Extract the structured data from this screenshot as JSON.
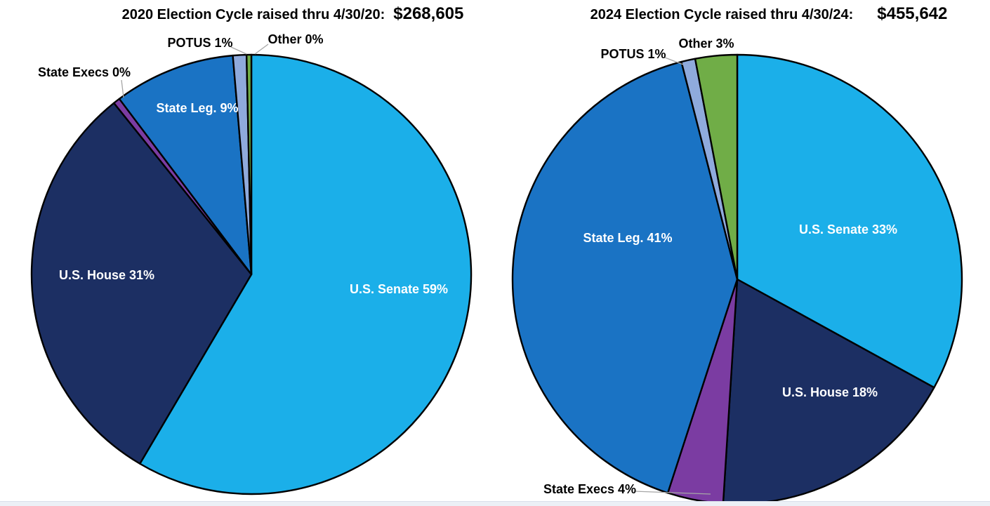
{
  "styles": {
    "background": "#ffffff",
    "slice_outline": "#000000",
    "leader_line": "#a6a6a6",
    "title_color": "#000000",
    "inside_label_color": "#ffffff",
    "outside_label_color": "#000000"
  },
  "chart_data": [
    {
      "type": "pie",
      "title": "2020 Election Cycle raised thru 4/30/20:",
      "total_raised": "$268,605",
      "categories": [
        "U.S. Senate",
        "U.S. House",
        "State Execs",
        "State Leg.",
        "POTUS",
        "Other"
      ],
      "values_pct": [
        59,
        31,
        0,
        9,
        1,
        0
      ],
      "render_pct": [
        58.7,
        30.9,
        0.5,
        8.95,
        1.0,
        0.35
      ],
      "labels": [
        "U.S. Senate 59%",
        "U.S. House 31%",
        "State Execs 0%",
        "State Leg. 9%",
        "POTUS 1%",
        "Other 0%"
      ],
      "colors": [
        "#1bafe9",
        "#1c2f63",
        "#7b3ca2",
        "#1a73c4",
        "#8faadc",
        "#70ad47"
      ],
      "label_placement": [
        "inside",
        "inside",
        "outside",
        "inside",
        "outside",
        "outside"
      ],
      "start_angle_deg": 0,
      "direction": "clockwise",
      "legend": "none"
    },
    {
      "type": "pie",
      "title": "2024 Election Cycle raised thru 4/30/24:",
      "total_raised": "$455,642",
      "categories": [
        "U.S. Senate",
        "U.S. House",
        "State Execs",
        "State Leg.",
        "POTUS",
        "Other"
      ],
      "values_pct": [
        33,
        18,
        4,
        41,
        1,
        3
      ],
      "render_pct": [
        33,
        18,
        4,
        41,
        1,
        3
      ],
      "labels": [
        "U.S. Senate 33%",
        "U.S. House 18%",
        "State Execs 4%",
        "State Leg. 41%",
        "POTUS 1%",
        "Other 3%"
      ],
      "colors": [
        "#1bafe9",
        "#1c2f63",
        "#7b3ca2",
        "#1a73c4",
        "#8faadc",
        "#70ad47"
      ],
      "label_placement": [
        "inside",
        "inside",
        "outside",
        "inside",
        "outside",
        "outside"
      ],
      "start_angle_deg": 0,
      "direction": "clockwise",
      "legend": "none"
    }
  ]
}
